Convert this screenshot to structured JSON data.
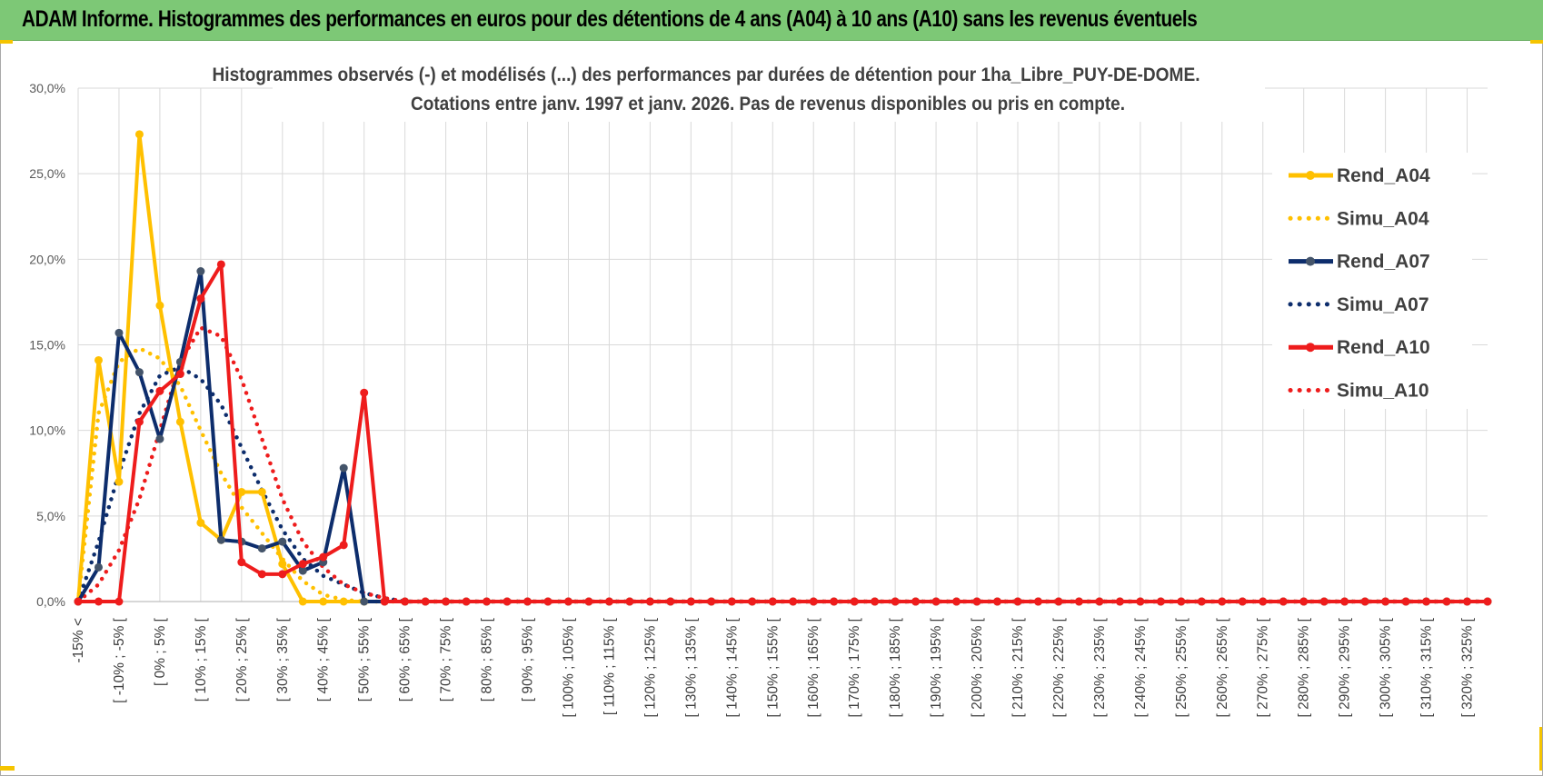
{
  "banner": {
    "title": "ADAM Informe. Histogrammes des performances en euros pour des détentions de 4 ans (A04) à 10 ans (A10) sans les revenus éventuels"
  },
  "colors": {
    "banner_bg": "#7dc876",
    "corner_accent": "#f5c400",
    "gridline": "#d9d9d9"
  },
  "chart_data": {
    "type": "line",
    "title_lines": [
      "Histogrammes observés (-) et modélisés (...) des performances par durées de détention pour 1ha_Libre_PUY-DE-DOME.",
      "Cotations entre janv. 1997 et janv. 2026. Pas de revenus disponibles ou pris en compte."
    ],
    "xlabel": "",
    "ylabel": "",
    "ylim": [
      0,
      30
    ],
    "y_ticks": [
      "0,0%",
      "5,0%",
      "10,0%",
      "15,0%",
      "20,0%",
      "25,0%",
      "30,0%"
    ],
    "grid": true,
    "legend_position": "right",
    "x_labels": [
      "-15% <",
      "[ -10% ; -5% [",
      "[ 0% ; 5% [",
      "[ 10% ; 15% [",
      "[ 20% ; 25% [",
      "[ 30% ; 35% [",
      "[ 40% ; 45% [",
      "[ 50% ; 55% [",
      "[ 60% ; 65% [",
      "[ 70% ; 75% [",
      "[ 80% ; 85% [",
      "[ 90% ; 95% [",
      "[ 100% ; 105% [",
      "[ 110% ; 115% [",
      "[ 120% ; 125% [",
      "[ 130% ; 135% [",
      "[ 140% ; 145% [",
      "[ 150% ; 155% [",
      "[ 160% ; 165% [",
      "[ 170% ; 175% [",
      "[ 180% ; 185% [",
      "[ 190% ; 195% [",
      "[ 200% ; 205% [",
      "[ 210% ; 215% [",
      "[ 220% ; 225% [",
      "[ 230% ; 235% [",
      "[ 240% ; 245% [",
      "[ 250% ; 255% [",
      "[ 260% ; 265% [",
      "[ 270% ; 275% [",
      "[ 280% ; 285% [",
      "[ 290% ; 295% [",
      "[ 300% ; 305% [",
      "[ 310% ; 315% [",
      "[ 320% ; 325% ["
    ],
    "bin_start": -15,
    "bin_step": 5,
    "bin_count": 70,
    "series": [
      {
        "name": "Rend_A04",
        "style": "solid",
        "markers": true,
        "color": "#ffc000",
        "values": [
          0.0,
          14.1,
          7.0,
          27.3,
          17.3,
          10.5,
          4.6,
          3.6,
          6.4,
          6.4,
          2.2,
          0.0,
          0.0,
          0.0,
          0.0
        ]
      },
      {
        "name": "Simu_A04",
        "style": "dotted",
        "markers": false,
        "color": "#ffc000",
        "values": [
          0.0,
          11.0,
          14.0,
          14.8,
          14.2,
          12.6,
          10.0,
          7.5,
          5.5,
          4.0,
          2.5,
          1.2,
          0.4,
          0.1,
          0.0
        ]
      },
      {
        "name": "Rend_A07",
        "style": "solid",
        "markers": true,
        "color": "#0d2d6c",
        "values": [
          0.0,
          2.0,
          15.7,
          13.4,
          9.5,
          14.0,
          19.3,
          3.6,
          3.5,
          3.1,
          3.5,
          1.8,
          2.3,
          7.8,
          0.0,
          0.0
        ]
      },
      {
        "name": "Simu_A07",
        "style": "dotted",
        "markers": false,
        "color": "#0d2d6c",
        "values": [
          0.0,
          3.5,
          7.5,
          11.0,
          13.2,
          13.7,
          13.0,
          11.5,
          9.0,
          6.5,
          4.2,
          2.5,
          1.5,
          1.0,
          0.5,
          0.2,
          0.0
        ]
      },
      {
        "name": "Rend_A10",
        "style": "solid",
        "markers": true,
        "color": "#ee1c1c",
        "values": [
          0.0,
          0.0,
          0.0,
          10.5,
          12.3,
          13.3,
          17.7,
          19.7,
          2.3,
          1.6,
          1.6,
          2.2,
          2.6,
          3.3,
          12.2,
          0.0
        ]
      },
      {
        "name": "Simu_A10",
        "style": "dotted",
        "markers": false,
        "color": "#ee1c1c",
        "values": [
          0.0,
          1.0,
          3.0,
          6.0,
          10.0,
          14.0,
          16.0,
          15.5,
          13.0,
          9.5,
          6.0,
          3.5,
          2.0,
          1.0,
          0.5,
          0.2,
          0.0
        ]
      }
    ]
  }
}
